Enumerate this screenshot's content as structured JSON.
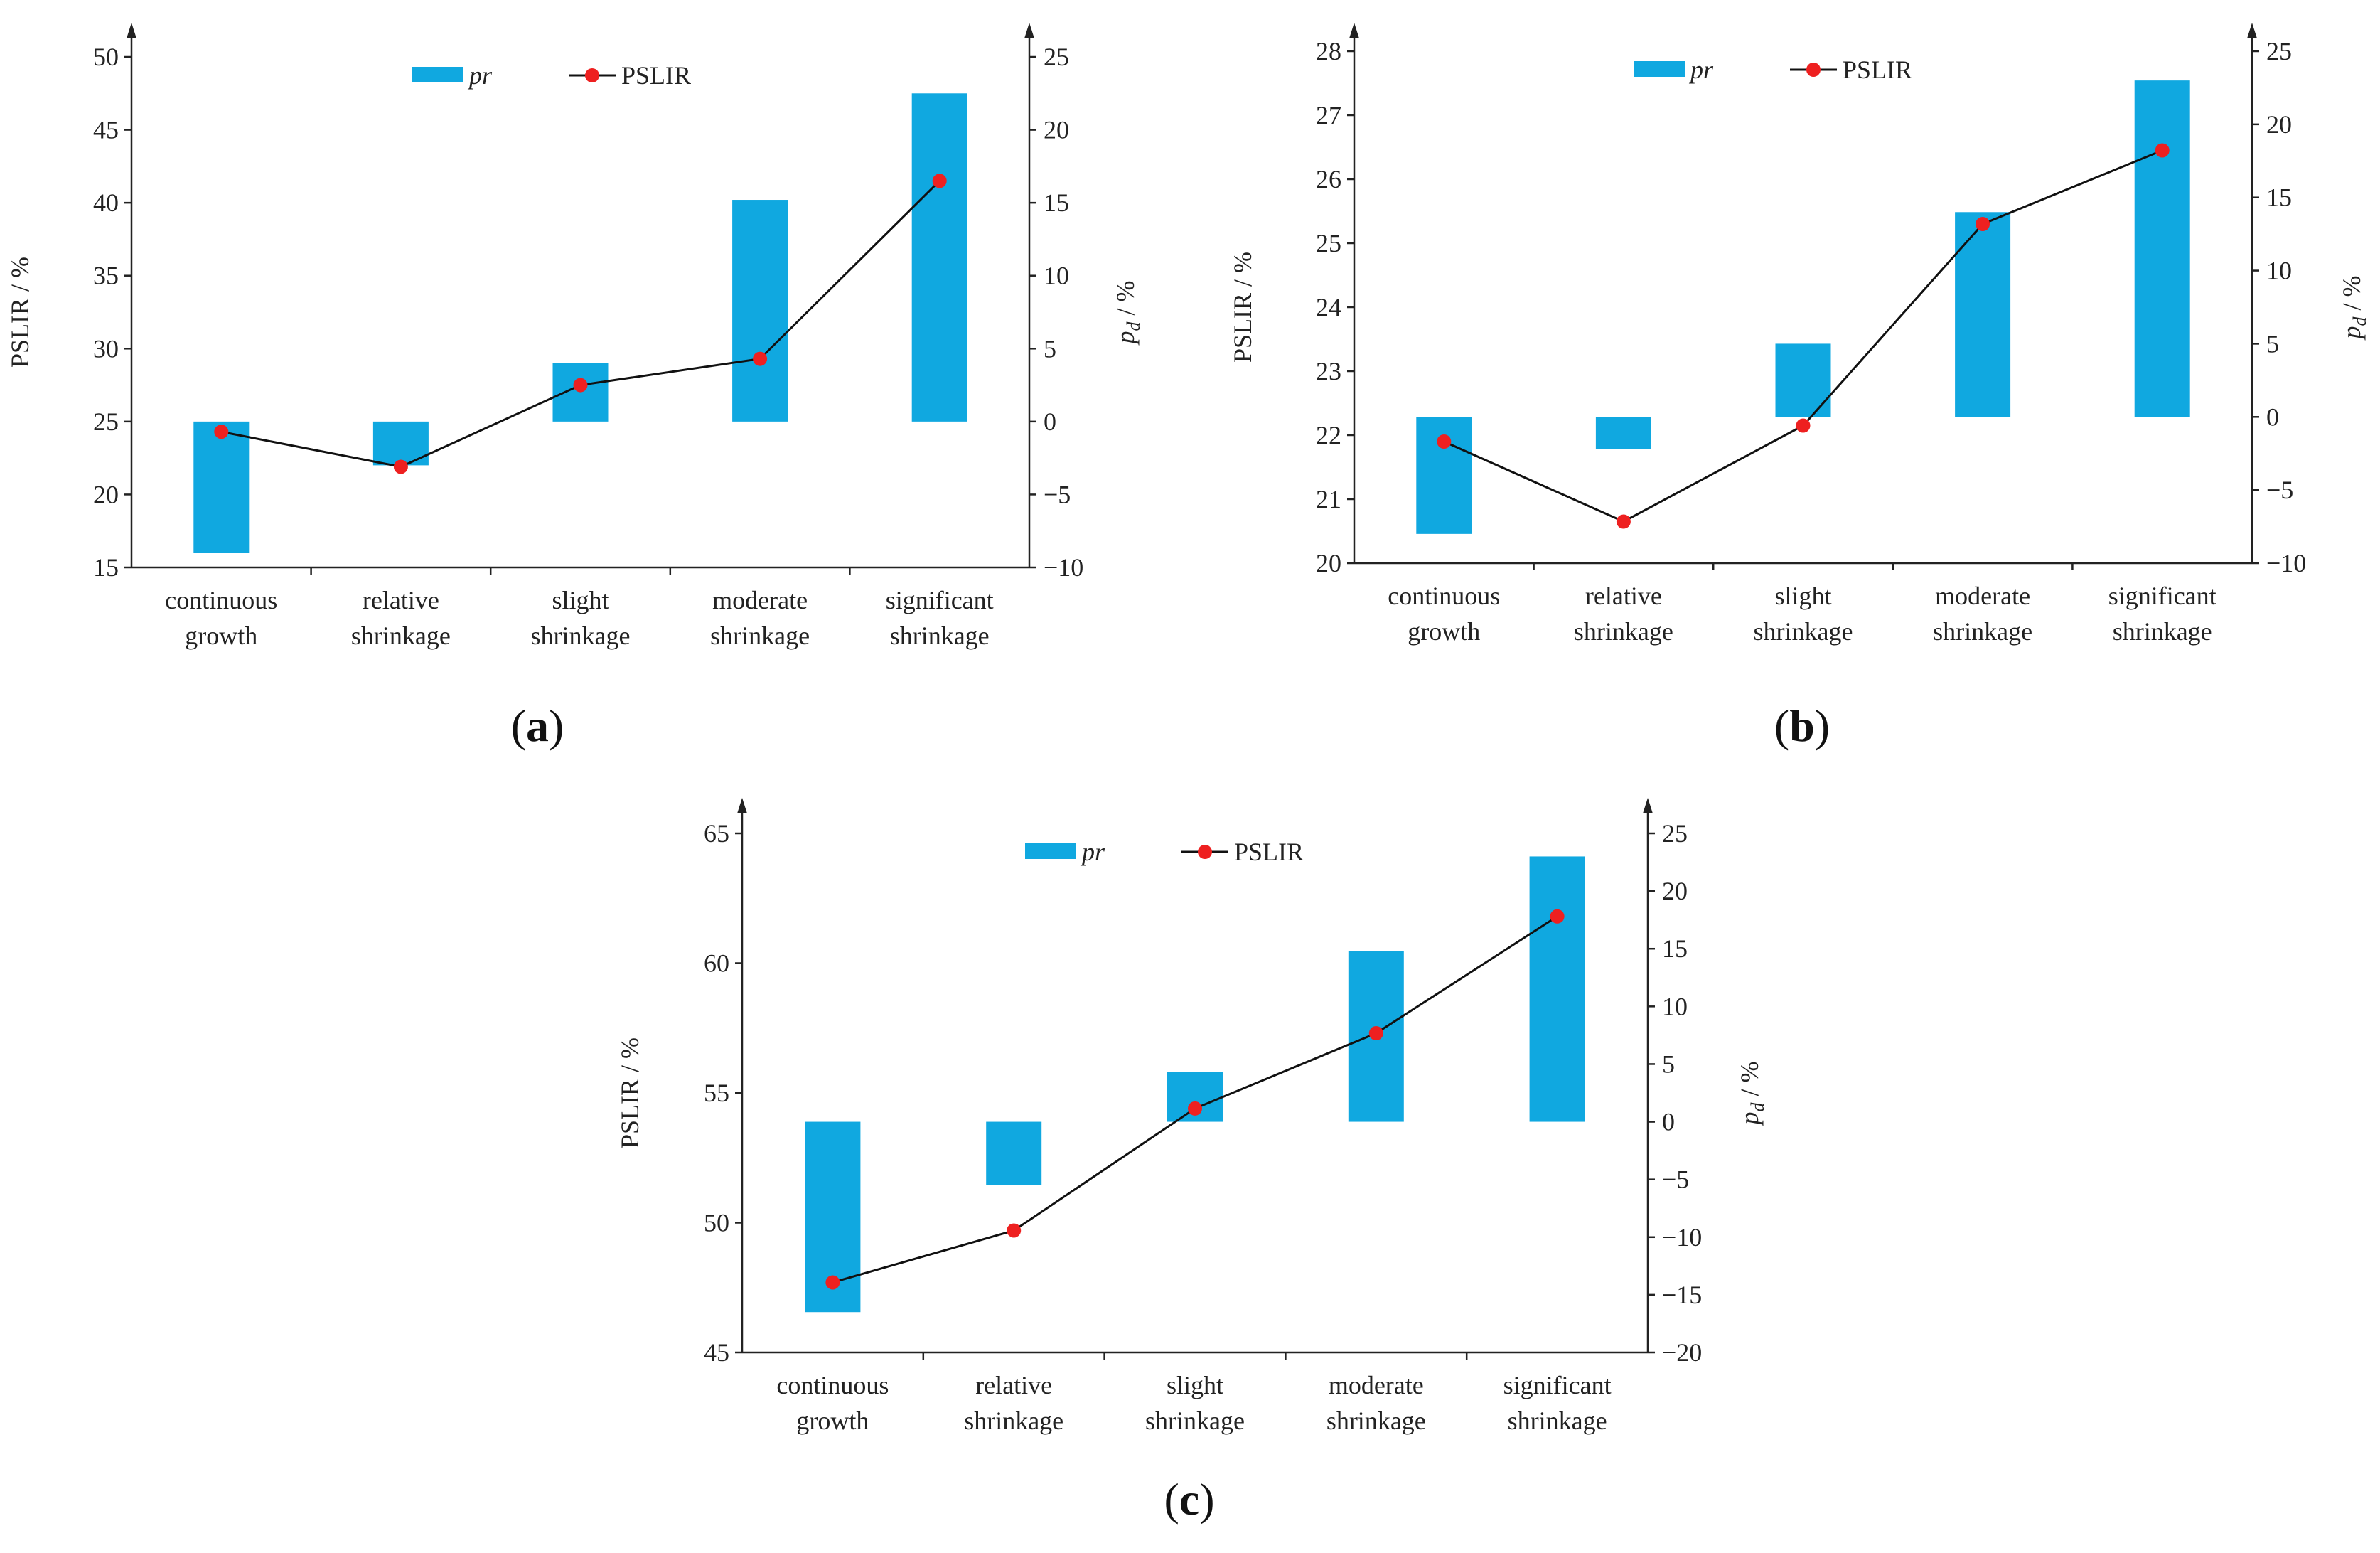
{
  "colors": {
    "bar": "#10a8e0",
    "line": "#111111",
    "marker": "#ee2020",
    "axis": "#222222"
  },
  "chart_data": [
    {
      "panel": "a",
      "type": "bar+line",
      "categories": [
        [
          "continuous",
          "growth"
        ],
        [
          "relative",
          "shrinkage"
        ],
        [
          "slight",
          "shrinkage"
        ],
        [
          "moderate",
          "shrinkage"
        ],
        [
          "significant",
          "shrinkage"
        ]
      ],
      "legend": {
        "bar_label": "pr",
        "line_label": "PSLIR"
      },
      "left_axis": {
        "label": "PSLIR / %",
        "min": 15,
        "max": 50,
        "ticks": [
          15,
          20,
          25,
          30,
          35,
          40,
          45,
          50
        ]
      },
      "right_axis": {
        "label_main": "p",
        "label_sub": "d",
        "label_rest": " / %",
        "min": -10,
        "max": 25,
        "ticks": [
          -10,
          -5,
          0,
          5,
          10,
          15,
          20,
          25
        ]
      },
      "series": [
        {
          "name": "pr",
          "type": "bar",
          "axis": "right",
          "values": [
            -9,
            -3,
            4,
            15.2,
            22.5
          ]
        },
        {
          "name": "PSLIR",
          "type": "line",
          "axis": "left",
          "values": [
            24.3,
            21.9,
            27.5,
            29.3,
            41.5
          ]
        }
      ]
    },
    {
      "panel": "b",
      "type": "bar+line",
      "categories": [
        [
          "continuous",
          "growth"
        ],
        [
          "relative",
          "shrinkage"
        ],
        [
          "slight",
          "shrinkage"
        ],
        [
          "moderate",
          "shrinkage"
        ],
        [
          "significant",
          "shrinkage"
        ]
      ],
      "legend": {
        "bar_label": "pr",
        "line_label": "PSLIR"
      },
      "left_axis": {
        "label": "PSLIR / %",
        "min": 20,
        "max": 28,
        "ticks": [
          20,
          21,
          22,
          23,
          24,
          25,
          26,
          27,
          28
        ]
      },
      "right_axis": {
        "label_main": "p",
        "label_sub": "d",
        "label_rest": " / %",
        "min": -10,
        "max": 25,
        "ticks": [
          -10,
          -5,
          0,
          5,
          10,
          15,
          20,
          25
        ]
      },
      "series": [
        {
          "name": "pr",
          "type": "bar",
          "axis": "right",
          "values": [
            -8,
            -2.2,
            5,
            14,
            23
          ]
        },
        {
          "name": "PSLIR",
          "type": "line",
          "axis": "left",
          "values": [
            21.9,
            20.65,
            22.15,
            25.3,
            26.45
          ]
        }
      ]
    },
    {
      "panel": "c",
      "type": "bar+line",
      "categories": [
        [
          "continuous",
          "growth"
        ],
        [
          "relative",
          "shrinkage"
        ],
        [
          "slight",
          "shrinkage"
        ],
        [
          "moderate",
          "shrinkage"
        ],
        [
          "significant",
          "shrinkage"
        ]
      ],
      "legend": {
        "bar_label": "pr",
        "line_label": "PSLIR"
      },
      "left_axis": {
        "label": "PSLIR / %",
        "min": 45,
        "max": 65,
        "ticks": [
          45,
          50,
          55,
          60,
          65
        ]
      },
      "right_axis": {
        "label_main": "p",
        "label_sub": "d",
        "label_rest": " / %",
        "min": -20,
        "max": 25,
        "ticks": [
          -20,
          -15,
          -10,
          -5,
          0,
          5,
          10,
          15,
          20,
          25
        ]
      },
      "series": [
        {
          "name": "pr",
          "type": "bar",
          "axis": "right",
          "values": [
            -16.5,
            -5.5,
            4.3,
            14.8,
            23
          ]
        },
        {
          "name": "PSLIR",
          "type": "line",
          "axis": "left",
          "values": [
            47.7,
            49.7,
            54.4,
            57.3,
            61.8
          ]
        }
      ]
    }
  ]
}
